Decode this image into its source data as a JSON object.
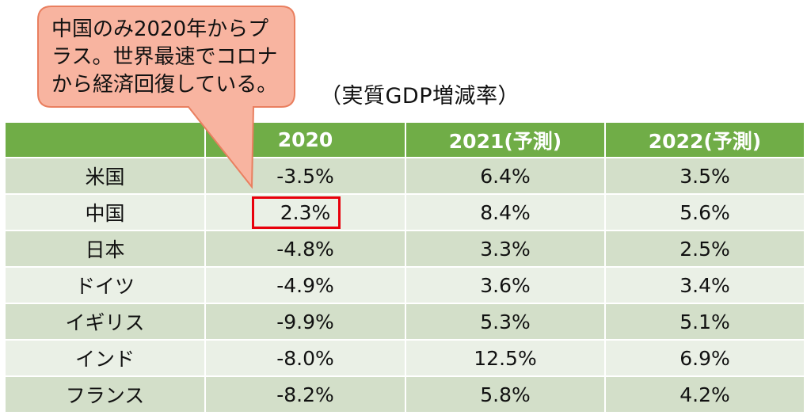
{
  "callout": {
    "lines": [
      "中国のみ2020年からプ",
      "ラス。世界最速でコロナ",
      "から経済回復している。"
    ]
  },
  "unit_label": "（実質GDP増減率）",
  "table": {
    "headers": [
      "",
      "2020",
      "2021(予測)",
      "2022(予測)"
    ],
    "rows": [
      {
        "country": "米国",
        "y2020": "-3.5%",
        "y2021": "6.4%",
        "y2022": "3.5%"
      },
      {
        "country": "中国",
        "y2020": "2.3%",
        "y2021": "8.4%",
        "y2022": "5.6%"
      },
      {
        "country": "日本",
        "y2020": "-4.8%",
        "y2021": "3.3%",
        "y2022": "2.5%"
      },
      {
        "country": "ドイツ",
        "y2020": "-4.9%",
        "y2021": "3.6%",
        "y2022": "3.4%"
      },
      {
        "country": "イギリス",
        "y2020": "-9.9%",
        "y2021": "5.3%",
        "y2022": "5.1%"
      },
      {
        "country": "インド",
        "y2020": "-8.0%",
        "y2021": "12.5%",
        "y2022": "6.9%"
      },
      {
        "country": "フランス",
        "y2020": "-8.2%",
        "y2021": "5.8%",
        "y2022": "4.2%"
      }
    ]
  },
  "colors": {
    "header_bg": "#70ad47",
    "row_dark": "#d3dfc9",
    "row_light": "#eaf0e6",
    "callout_fill": "#f8b4a0",
    "callout_border": "#e97f5f",
    "highlight": "#e8000b"
  }
}
